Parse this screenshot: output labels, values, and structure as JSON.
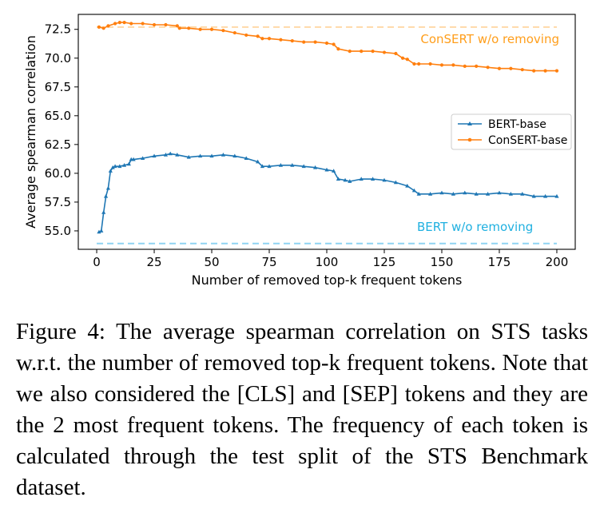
{
  "chart_data": {
    "type": "line",
    "xlabel": "Number of removed top-k frequent tokens",
    "ylabel": "Average spearman correlation",
    "xlim": [
      -8,
      208
    ],
    "ylim": [
      53.4,
      73.8
    ],
    "xticks": [
      0,
      25,
      50,
      75,
      100,
      125,
      150,
      175,
      200
    ],
    "yticks": [
      55.0,
      57.5,
      60.0,
      62.5,
      65.0,
      67.5,
      70.0,
      72.5
    ],
    "ytick_labels": [
      "55.0",
      "57.5",
      "60.0",
      "62.5",
      "65.0",
      "67.5",
      "70.0",
      "72.5"
    ],
    "grid": false,
    "legend": {
      "position": "right",
      "entries": [
        "BERT-base",
        "ConSERT-base"
      ]
    },
    "series": [
      {
        "name": "BERT-base",
        "color": "#1f77b4",
        "marker": "triangle",
        "x": [
          1,
          2,
          3,
          4,
          5,
          6,
          7,
          8,
          10,
          12,
          14,
          15,
          16,
          20,
          25,
          30,
          32,
          35,
          40,
          45,
          50,
          55,
          60,
          65,
          70,
          72,
          75,
          80,
          85,
          90,
          95,
          100,
          103,
          105,
          108,
          110,
          115,
          120,
          125,
          130,
          135,
          138,
          140,
          145,
          150,
          155,
          160,
          165,
          170,
          175,
          180,
          185,
          190,
          195,
          200
        ],
        "y": [
          54.9,
          55.0,
          56.6,
          58.0,
          58.7,
          60.2,
          60.5,
          60.6,
          60.6,
          60.7,
          60.8,
          61.2,
          61.2,
          61.3,
          61.5,
          61.6,
          61.7,
          61.6,
          61.4,
          61.5,
          61.5,
          61.6,
          61.5,
          61.3,
          61.0,
          60.6,
          60.6,
          60.7,
          60.7,
          60.6,
          60.5,
          60.3,
          60.2,
          59.5,
          59.4,
          59.3,
          59.5,
          59.5,
          59.4,
          59.2,
          58.9,
          58.5,
          58.2,
          58.2,
          58.3,
          58.2,
          58.3,
          58.2,
          58.2,
          58.3,
          58.2,
          58.2,
          58.0,
          58.0,
          58.0
        ]
      },
      {
        "name": "ConSERT-base",
        "color": "#ff7f0e",
        "marker": "circle",
        "x": [
          1,
          3,
          5,
          8,
          10,
          12,
          15,
          20,
          25,
          30,
          35,
          36,
          40,
          45,
          50,
          55,
          60,
          65,
          70,
          72,
          75,
          80,
          85,
          90,
          95,
          100,
          103,
          105,
          110,
          115,
          120,
          125,
          130,
          133,
          135,
          138,
          140,
          145,
          150,
          155,
          160,
          165,
          170,
          175,
          180,
          185,
          190,
          195,
          200
        ],
        "y": [
          72.7,
          72.6,
          72.8,
          73.0,
          73.1,
          73.1,
          73.0,
          73.0,
          72.9,
          72.9,
          72.8,
          72.6,
          72.6,
          72.5,
          72.5,
          72.4,
          72.2,
          72.0,
          71.9,
          71.7,
          71.7,
          71.6,
          71.5,
          71.4,
          71.4,
          71.3,
          71.2,
          70.8,
          70.6,
          70.6,
          70.6,
          70.5,
          70.4,
          70.0,
          69.9,
          69.5,
          69.5,
          69.5,
          69.4,
          69.4,
          69.3,
          69.3,
          69.2,
          69.1,
          69.1,
          69.0,
          68.9,
          68.9,
          68.9
        ]
      }
    ],
    "reference_lines": [
      {
        "label": "ConSERT w/o removing",
        "value": 72.7,
        "color": "#ffd9a8",
        "text_color": "#ff9e1b",
        "x_from": 0,
        "x_to": 200
      },
      {
        "label": "BERT w/o removing",
        "value": 53.9,
        "color": "#8fd4f2",
        "text_color": "#1fb0e0",
        "x_from": 0,
        "x_to": 200
      }
    ]
  },
  "caption": "Figure 4: The average spearman correlation on STS tasks w.r.t. the number of removed top-k frequent tokens. Note that we also considered the [CLS] and [SEP] tokens and they are the 2 most frequent tokens. The frequency of each token is calculated through the test split of the STS Benchmark dataset."
}
